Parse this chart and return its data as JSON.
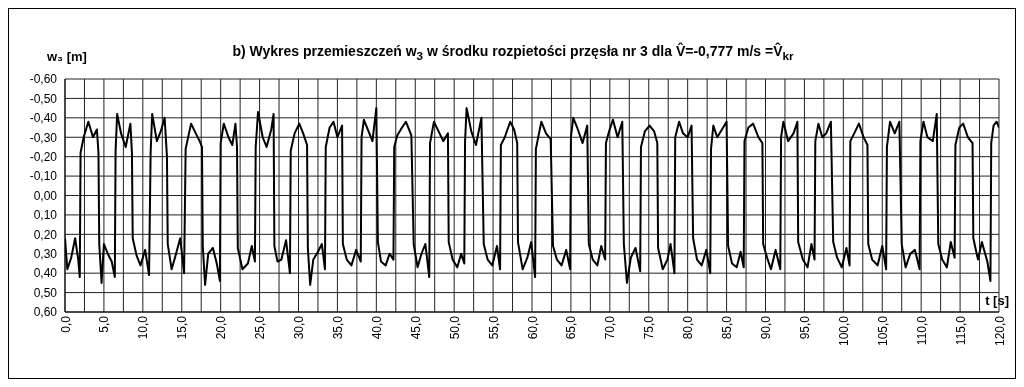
{
  "chart_data": {
    "type": "line",
    "title": "b)  Wykres przemieszczeń w$_{3}$ w środku rozpietości przęsła nr 3 dla V̂=-0,777 m/s =V̂$_{kr}$",
    "ylabel": "w₃ [m]",
    "xlabel": "t [s]",
    "xlim": [
      0,
      120
    ],
    "ylim": [
      0.6,
      -0.6
    ],
    "xticks": [
      {
        "value": 0,
        "label": "0,0"
      },
      {
        "value": 2.5,
        "label": null
      },
      {
        "value": 5,
        "label": "5,0"
      },
      {
        "value": 7.5,
        "label": null
      },
      {
        "value": 10,
        "label": "10,0"
      },
      {
        "value": 12.5,
        "label": null
      },
      {
        "value": 15,
        "label": "15,0"
      },
      {
        "value": 17.5,
        "label": null
      },
      {
        "value": 20,
        "label": "20,0"
      },
      {
        "value": 22.5,
        "label": null
      },
      {
        "value": 25,
        "label": "25,0"
      },
      {
        "value": 27.5,
        "label": null
      },
      {
        "value": 30,
        "label": "30,0"
      },
      {
        "value": 32.5,
        "label": null
      },
      {
        "value": 35,
        "label": "35,0"
      },
      {
        "value": 37.5,
        "label": null
      },
      {
        "value": 40,
        "label": "40,0"
      },
      {
        "value": 42.5,
        "label": null
      },
      {
        "value": 45,
        "label": "45,0"
      },
      {
        "value": 47.5,
        "label": null
      },
      {
        "value": 50,
        "label": "50,0"
      },
      {
        "value": 52.5,
        "label": null
      },
      {
        "value": 55,
        "label": "55,0"
      },
      {
        "value": 57.5,
        "label": null
      },
      {
        "value": 60,
        "label": "60,0"
      },
      {
        "value": 62.5,
        "label": null
      },
      {
        "value": 65,
        "label": "65,0"
      },
      {
        "value": 67.5,
        "label": null
      },
      {
        "value": 70,
        "label": "70,0"
      },
      {
        "value": 72.5,
        "label": null
      },
      {
        "value": 75,
        "label": "75,0"
      },
      {
        "value": 77.5,
        "label": null
      },
      {
        "value": 80,
        "label": "80,0"
      },
      {
        "value": 82.5,
        "label": null
      },
      {
        "value": 85,
        "label": "85,0"
      },
      {
        "value": 87.5,
        "label": null
      },
      {
        "value": 90,
        "label": "90,0"
      },
      {
        "value": 92.5,
        "label": null
      },
      {
        "value": 95,
        "label": "95,0"
      },
      {
        "value": 97.5,
        "label": null
      },
      {
        "value": 100,
        "label": "100,0"
      },
      {
        "value": 102.5,
        "label": null
      },
      {
        "value": 105,
        "label": "105,0"
      },
      {
        "value": 107.5,
        "label": null
      },
      {
        "value": 110,
        "label": "110,0"
      },
      {
        "value": 112.5,
        "label": null
      },
      {
        "value": 115,
        "label": "115,0"
      },
      {
        "value": 117.5,
        "label": null
      },
      {
        "value": 120,
        "label": "120,0"
      }
    ],
    "yticks": [
      {
        "value": -0.6,
        "label": "-0,60"
      },
      {
        "value": -0.5,
        "label": "-0,50"
      },
      {
        "value": -0.4,
        "label": "-0,40"
      },
      {
        "value": -0.3,
        "label": "-0,30"
      },
      {
        "value": -0.2,
        "label": "-0,20"
      },
      {
        "value": -0.1,
        "label": "-0,10"
      },
      {
        "value": 0,
        "label": "0,00"
      },
      {
        "value": 0.1,
        "label": "0,10"
      },
      {
        "value": 0.2,
        "label": "0,20"
      },
      {
        "value": 0.3,
        "label": "0,30"
      },
      {
        "value": 0.4,
        "label": "0,40"
      },
      {
        "value": 0.5,
        "label": "0,50"
      },
      {
        "value": 0.6,
        "label": "0,60"
      }
    ],
    "grid": true,
    "marker": "none",
    "line_style": "solid",
    "x": [
      0,
      0.3,
      0.8,
      1.3,
      1.7,
      1.9,
      2.0,
      2.4,
      3.0,
      3.6,
      4.1,
      4.3,
      4.4,
      4.7,
      5.0,
      5.5,
      6.0,
      6.4,
      6.5,
      6.7,
      7.2,
      7.8,
      8.4,
      8.6,
      8.7,
      9.2,
      9.7,
      10.3,
      10.8,
      11.0,
      11.2,
      11.8,
      12.3,
      12.8,
      13.1,
      13.2,
      13.7,
      14.2,
      14.8,
      15.3,
      15.5,
      16.2,
      16.8,
      17.3,
      17.6,
      17.7,
      18.0,
      18.4,
      19.0,
      19.5,
      19.9,
      20.0,
      20.4,
      21.0,
      21.5,
      21.9,
      22.1,
      22.2,
      22.8,
      23.5,
      24.0,
      24.4,
      24.5,
      24.8,
      25.4,
      25.9,
      26.5,
      26.8,
      26.9,
      27.3,
      27.8,
      28.4,
      28.9,
      29.0,
      29.5,
      30.1,
      30.6,
      31.1,
      31.2,
      31.5,
      31.9,
      32.5,
      33.0,
      33.4,
      33.5,
      34.0,
      34.5,
      35.0,
      35.6,
      35.7,
      36.2,
      36.8,
      37.4,
      38.0,
      38.1,
      38.4,
      39.0,
      39.5,
      40.0,
      40.2,
      40.6,
      41.2,
      41.7,
      42.2,
      42.3,
      42.7,
      43.3,
      43.8,
      44.5,
      44.8,
      45.3,
      45.8,
      46.3,
      46.8,
      46.9,
      47.4,
      48.0,
      48.6,
      49.2,
      49.3,
      49.8,
      50.4,
      50.9,
      51.3,
      51.4,
      51.6,
      52.2,
      52.8,
      53.5,
      53.8,
      54.3,
      54.9,
      55.5,
      55.9,
      56.0,
      56.5,
      57.2,
      57.7,
      58.1,
      58.2,
      58.8,
      59.4,
      59.9,
      60.4,
      60.5,
      61.2,
      61.8,
      62.4,
      62.7,
      63.2,
      63.8,
      64.4,
      64.9,
      65.0,
      65.3,
      65.8,
      66.5,
      67.1,
      67.3,
      67.8,
      68.4,
      68.9,
      69.4,
      69.5,
      69.9,
      70.4,
      71.0,
      71.6,
      71.8,
      72.2,
      72.7,
      73.3,
      73.9,
      74.0,
      74.5,
      75.1,
      75.7,
      76.1,
      76.2,
      76.8,
      77.4,
      77.8,
      78.3,
      78.4,
      78.9,
      79.4,
      80.0,
      80.5,
      80.7,
      81.2,
      81.8,
      82.4,
      82.9,
      83.0,
      83.3,
      83.8,
      84.4,
      85.0,
      85.2,
      85.7,
      86.3,
      86.8,
      87.2,
      87.3,
      87.8,
      88.4,
      89.1,
      89.6,
      89.7,
      90.2,
      90.7,
      91.3,
      91.9,
      92.0,
      92.3,
      92.9,
      93.6,
      94.1,
      94.2,
      94.8,
      95.4,
      95.9,
      96.3,
      96.4,
      96.8,
      97.3,
      97.8,
      98.4,
      98.7,
      99.2,
      99.8,
      100.4,
      100.8,
      100.9,
      101.4,
      102.0,
      102.6,
      103.1,
      103.2,
      103.7,
      104.4,
      105.0,
      105.5,
      105.6,
      106.0,
      106.6,
      107.2,
      107.5,
      108.0,
      108.6,
      109.2,
      109.8,
      109.9,
      110.3,
      110.8,
      111.5,
      112.0,
      112.2,
      112.7,
      113.3,
      113.8,
      114.3,
      114.4,
      114.9,
      115.4,
      116.0,
      116.6,
      116.7,
      117.3,
      117.8,
      118.5,
      118.9,
      119.0,
      119.3,
      119.7,
      120.0
    ],
    "series": [
      {
        "color": "#000000",
        "values": [
          0.22,
          0.38,
          0.32,
          0.22,
          0.33,
          0.42,
          -0.22,
          -0.3,
          -0.38,
          -0.3,
          -0.34,
          -0.22,
          0.25,
          0.45,
          0.25,
          0.3,
          0.34,
          0.42,
          -0.23,
          -0.42,
          -0.32,
          -0.25,
          -0.37,
          -0.22,
          0.22,
          0.31,
          0.36,
          0.28,
          0.41,
          -0.22,
          -0.42,
          -0.28,
          -0.33,
          -0.4,
          -0.2,
          0.25,
          0.38,
          0.31,
          0.22,
          0.4,
          -0.24,
          -0.37,
          -0.32,
          -0.28,
          -0.25,
          0.26,
          0.46,
          0.3,
          0.27,
          0.35,
          0.44,
          -0.27,
          -0.37,
          -0.3,
          -0.26,
          -0.37,
          -0.25,
          0.27,
          0.38,
          0.35,
          0.26,
          0.34,
          -0.25,
          -0.43,
          -0.3,
          -0.25,
          -0.34,
          -0.42,
          0.26,
          0.34,
          0.33,
          0.23,
          0.4,
          -0.23,
          -0.32,
          -0.37,
          -0.32,
          -0.26,
          0.27,
          0.46,
          0.33,
          0.29,
          0.25,
          0.38,
          -0.25,
          -0.35,
          -0.38,
          -0.3,
          -0.36,
          0.25,
          0.33,
          0.36,
          0.28,
          0.34,
          -0.3,
          -0.39,
          -0.33,
          -0.28,
          -0.45,
          0.24,
          0.34,
          0.36,
          0.3,
          0.33,
          -0.25,
          -0.31,
          -0.35,
          -0.38,
          -0.31,
          0.25,
          0.37,
          0.3,
          0.25,
          0.42,
          -0.27,
          -0.38,
          -0.33,
          -0.28,
          -0.32,
          0.24,
          0.33,
          0.37,
          0.3,
          0.35,
          -0.28,
          -0.45,
          -0.33,
          -0.26,
          -0.4,
          0.25,
          0.33,
          0.36,
          0.26,
          0.38,
          -0.26,
          -0.3,
          -0.38,
          -0.34,
          -0.27,
          0.24,
          0.38,
          0.32,
          0.24,
          0.42,
          -0.24,
          -0.38,
          -0.32,
          -0.29,
          0.26,
          0.33,
          0.36,
          0.28,
          0.38,
          -0.3,
          -0.4,
          -0.35,
          -0.27,
          -0.36,
          0.25,
          0.33,
          0.36,
          0.26,
          0.33,
          -0.27,
          -0.33,
          -0.39,
          -0.3,
          -0.38,
          0.25,
          0.45,
          0.32,
          0.27,
          0.39,
          -0.25,
          -0.33,
          -0.36,
          -0.33,
          -0.27,
          0.27,
          0.38,
          0.33,
          0.25,
          0.4,
          -0.3,
          -0.38,
          -0.32,
          -0.3,
          -0.36,
          0.22,
          0.33,
          0.36,
          0.28,
          0.4,
          -0.24,
          -0.36,
          -0.3,
          -0.34,
          -0.38,
          0.26,
          0.35,
          0.37,
          0.29,
          0.37,
          -0.28,
          -0.35,
          -0.37,
          -0.3,
          -0.27,
          0.25,
          0.32,
          0.38,
          0.28,
          0.38,
          -0.3,
          -0.38,
          -0.28,
          -0.32,
          -0.38,
          0.24,
          0.33,
          0.37,
          0.25,
          0.33,
          -0.28,
          -0.37,
          -0.3,
          -0.32,
          -0.38,
          0.24,
          0.32,
          0.37,
          0.27,
          0.36,
          -0.28,
          -0.32,
          -0.37,
          -0.3,
          -0.26,
          0.25,
          0.33,
          0.36,
          0.26,
          0.38,
          -0.25,
          -0.38,
          -0.32,
          -0.38,
          0.25,
          0.37,
          0.3,
          0.28,
          0.38,
          -0.28,
          -0.38,
          -0.3,
          -0.28,
          -0.42,
          0.25,
          0.33,
          0.37,
          0.24,
          0.32,
          -0.26,
          -0.35,
          -0.37,
          -0.3,
          -0.27,
          0.22,
          0.33,
          0.24,
          0.34,
          0.44,
          -0.27,
          -0.36,
          -0.38,
          -0.35
        ]
      }
    ]
  }
}
